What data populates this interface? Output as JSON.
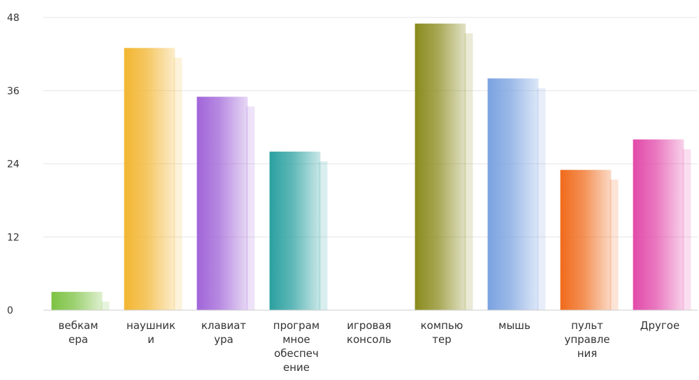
{
  "chart_data": {
    "type": "bar",
    "categories": [
      [
        "вебкам",
        "ера"
      ],
      [
        "наушник",
        "и"
      ],
      [
        "клавиат",
        "ура"
      ],
      [
        "програм",
        "мное",
        "обеспеч",
        "ение"
      ],
      [
        "игровая",
        "консоль"
      ],
      [
        "компью",
        "тер"
      ],
      [
        "мышь"
      ],
      [
        "пульт",
        "управле",
        "ния"
      ],
      [
        "Другое"
      ]
    ],
    "values": [
      3,
      43,
      35,
      26,
      0,
      47,
      38,
      23,
      28
    ],
    "colors": [
      "#7cc242",
      "#f2b530",
      "#a064d8",
      "#2aa0a0",
      "#cccccc",
      "#8a8a1c",
      "#7aa2e0",
      "#f06a1a",
      "#e24aaa"
    ],
    "yticks": [
      0,
      12,
      24,
      36,
      48
    ],
    "ylim": [
      0,
      48
    ],
    "grid": true,
    "title": "",
    "xlabel": "",
    "ylabel": ""
  }
}
